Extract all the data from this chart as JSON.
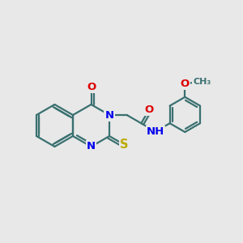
{
  "bg_color": "#e8e8e8",
  "bond_color": "#3a7070",
  "atom_colors": {
    "N": "#0000ee",
    "O": "#dd0000",
    "S": "#bbaa00",
    "C": "#3a7070"
  },
  "font_size": 9.5,
  "fig_size": [
    3.0,
    3.0
  ],
  "dpi": 100,
  "lw": 1.6,
  "off": 3.2
}
